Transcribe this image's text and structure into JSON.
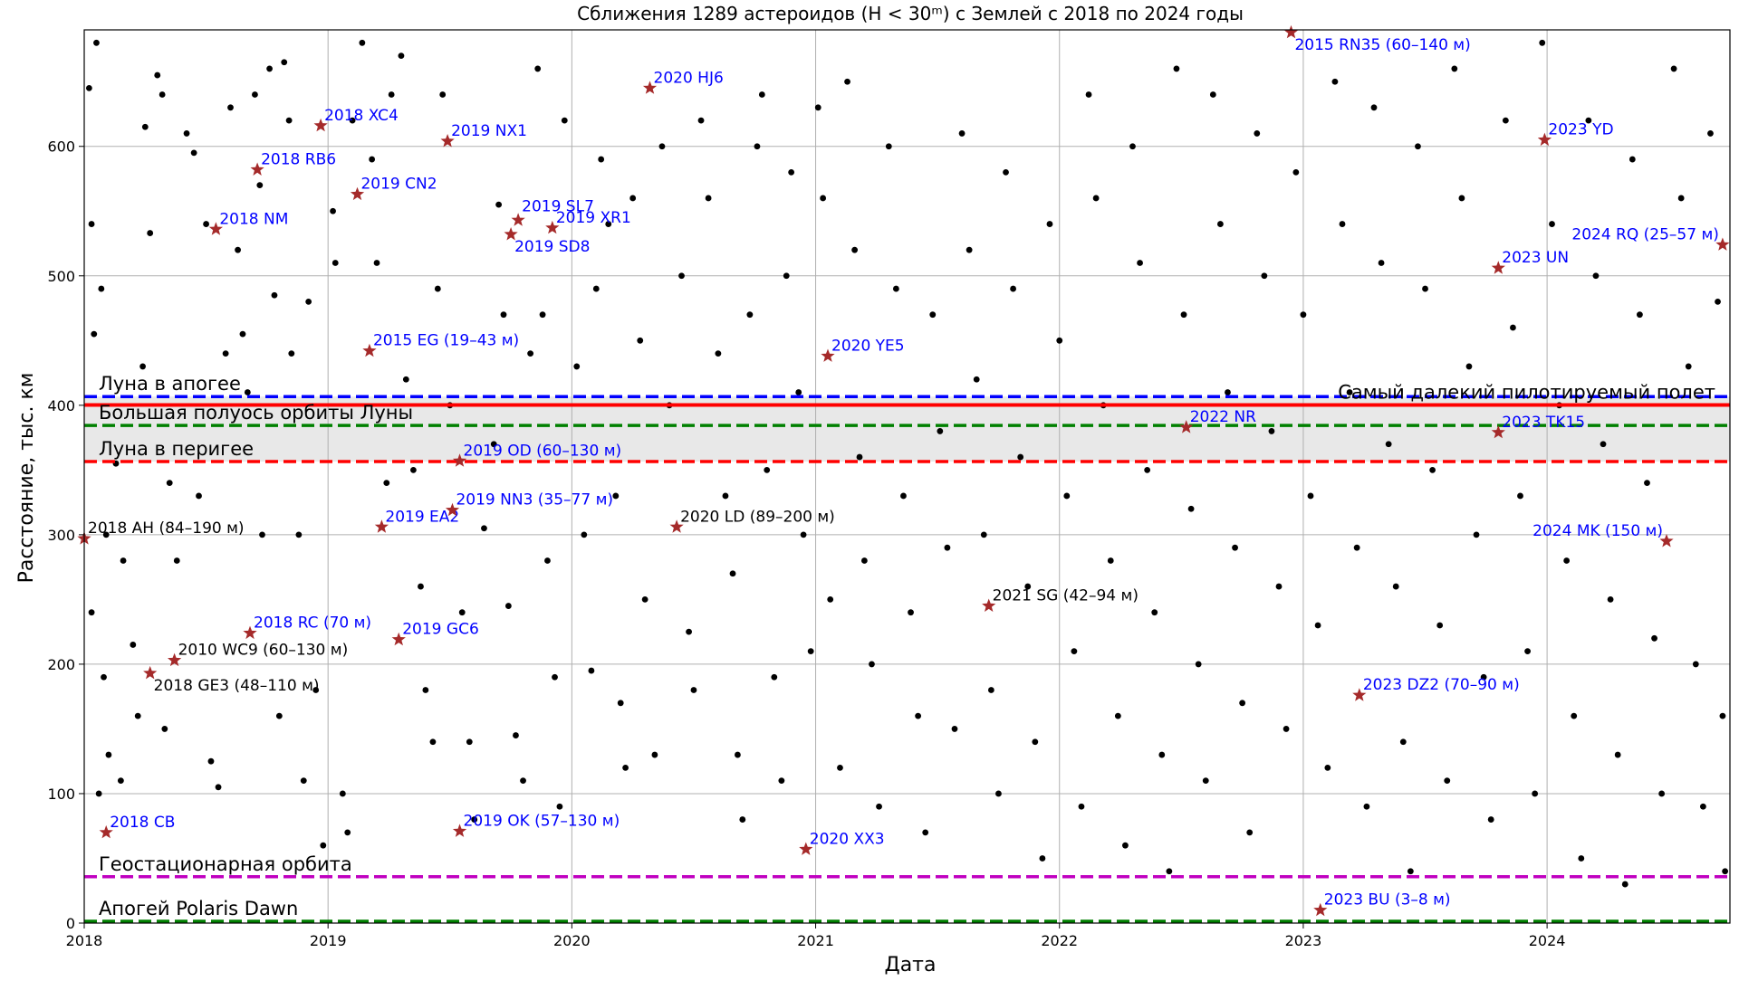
{
  "chart_data": {
    "type": "scatter",
    "title": "Сближения 1289 астероидов (H < 30ᵐ) с Землей с 2018 по 2024 годы",
    "xlabel": "Дата",
    "ylabel": "Расстояние, тыс. км",
    "xlim": [
      2018.0,
      2024.75
    ],
    "ylim": [
      0,
      690
    ],
    "x_ticks": [
      2018,
      2019,
      2020,
      2021,
      2022,
      2023,
      2024
    ],
    "y_ticks": [
      0,
      100,
      200,
      300,
      400,
      500,
      600
    ],
    "grid": true,
    "colors": {
      "points": "#000000",
      "star": "#a52a2a",
      "label_blue": "#0000ff",
      "label_black": "#000000",
      "moon_apogee": "#0000ff",
      "manned_record": "#ff0000",
      "semi_major_axis": "#008000",
      "moon_perigee": "#ff0000",
      "geo_orbit": "#c000c0",
      "polaris_dawn": "#008000",
      "moon_band": "#e8e8e8"
    },
    "reference_lines": [
      {
        "name": "Луна в апогее",
        "value": 406.7,
        "style": "dashed",
        "color": "#0000ff",
        "label_side": "left"
      },
      {
        "name": "Самый далекий пилотируемый полет",
        "value": 400.2,
        "style": "solid",
        "color": "#ff0000",
        "label_side": "right"
      },
      {
        "name": "Большая полуось орбиты Луны",
        "value": 384.4,
        "style": "dashed",
        "color": "#008000",
        "label_side": "left"
      },
      {
        "name": "Луна в перигее",
        "value": 356.5,
        "style": "dashed",
        "color": "#ff0000",
        "label_side": "left"
      },
      {
        "name": "Геостационарная орбита",
        "value": 35.8,
        "style": "dashed",
        "color": "#c000c0",
        "label_side": "left"
      },
      {
        "name": "Апогей Polaris Dawn",
        "value": 1.4,
        "style": "dashed",
        "color": "#008000",
        "label_side": "left"
      }
    ],
    "moon_band": [
      356.5,
      406.7
    ],
    "highlighted": [
      {
        "x": 2018.09,
        "y": 70,
        "label": "2018 CB",
        "color": "blue"
      },
      {
        "x": 2018.27,
        "y": 193,
        "label": "2018 GE3 (48–110 м)",
        "color": "black",
        "pos": "below"
      },
      {
        "x": 2018.37,
        "y": 203,
        "label": "2010 WC9 (60–130 м)",
        "color": "black"
      },
      {
        "x": 2018.0,
        "y": 297,
        "label": "2018 AH (84–190 м)",
        "color": "black"
      },
      {
        "x": 2018.54,
        "y": 536,
        "label": "2018 NM",
        "color": "blue"
      },
      {
        "x": 2018.68,
        "y": 224,
        "label": "2018 RC (70 м)",
        "color": "blue"
      },
      {
        "x": 2018.71,
        "y": 582,
        "label": "2018 RB6",
        "color": "blue"
      },
      {
        "x": 2018.97,
        "y": 616,
        "label": "2018 XC4",
        "color": "blue"
      },
      {
        "x": 2019.12,
        "y": 563,
        "label": "2019 CN2",
        "color": "blue"
      },
      {
        "x": 2019.17,
        "y": 442,
        "label": "2015 EG (19–43 м)",
        "color": "blue"
      },
      {
        "x": 2019.22,
        "y": 306,
        "label": "2019 EA2",
        "color": "blue"
      },
      {
        "x": 2019.29,
        "y": 219,
        "label": "2019 GC6",
        "color": "blue"
      },
      {
        "x": 2019.49,
        "y": 604,
        "label": "2019 NX1",
        "color": "blue"
      },
      {
        "x": 2019.51,
        "y": 319,
        "label": "2019 NN3 (35–77 м)",
        "color": "blue"
      },
      {
        "x": 2019.54,
        "y": 357,
        "label": "2019 OD (60–130 м)",
        "color": "blue"
      },
      {
        "x": 2019.54,
        "y": 71,
        "label": "2019 OK (57–130 м)",
        "color": "blue"
      },
      {
        "x": 2019.75,
        "y": 532,
        "label": "2019 SD8",
        "color": "blue",
        "pos": "below"
      },
      {
        "x": 2019.78,
        "y": 543,
        "label": "2019 SL7",
        "color": "blue",
        "pos": "above"
      },
      {
        "x": 2019.92,
        "y": 537,
        "label": "2019 XR1",
        "color": "blue"
      },
      {
        "x": 2020.32,
        "y": 645,
        "label": "2020 HJ6",
        "color": "blue"
      },
      {
        "x": 2020.43,
        "y": 306,
        "label": "2020 LD (89–200 м)",
        "color": "black"
      },
      {
        "x": 2020.96,
        "y": 57,
        "label": "2020 XX3",
        "color": "blue"
      },
      {
        "x": 2021.05,
        "y": 438,
        "label": "2020 YE5",
        "color": "blue"
      },
      {
        "x": 2021.71,
        "y": 245,
        "label": "2021 SG (42–94 м)",
        "color": "black"
      },
      {
        "x": 2022.52,
        "y": 383,
        "label": "2022 NR",
        "color": "blue"
      },
      {
        "x": 2022.95,
        "y": 688,
        "label": "2015 RN35 (60–140 м)",
        "color": "blue",
        "pos": "below"
      },
      {
        "x": 2023.07,
        "y": 10,
        "label": "2023 BU (3–8 м)",
        "color": "blue"
      },
      {
        "x": 2023.23,
        "y": 176,
        "label": "2023 DZ2 (70–90 м)",
        "color": "blue"
      },
      {
        "x": 2023.8,
        "y": 506,
        "label": "2023 UN",
        "color": "blue"
      },
      {
        "x": 2023.8,
        "y": 379,
        "label": "2023 TK15",
        "color": "blue"
      },
      {
        "x": 2023.99,
        "y": 605,
        "label": "2023 YD",
        "color": "blue"
      },
      {
        "x": 2024.49,
        "y": 295,
        "label": "2024 MK (150 м)",
        "color": "blue",
        "anchor": "end"
      },
      {
        "x": 2024.72,
        "y": 524,
        "label": "2024 RQ (25–57 м)",
        "color": "blue",
        "anchor": "end"
      }
    ],
    "points": [
      [
        2018.02,
        645
      ],
      [
        2018.05,
        680
      ],
      [
        2018.03,
        540
      ],
      [
        2018.07,
        490
      ],
      [
        2018.04,
        455
      ],
      [
        2018.09,
        300
      ],
      [
        2018.03,
        240
      ],
      [
        2018.08,
        190
      ],
      [
        2018.1,
        130
      ],
      [
        2018.06,
        100
      ],
      [
        2018.13,
        355
      ],
      [
        2018.16,
        280
      ],
      [
        2018.15,
        110
      ],
      [
        2018.2,
        215
      ],
      [
        2018.22,
        160
      ],
      [
        2018.25,
        615
      ],
      [
        2018.27,
        533
      ],
      [
        2018.3,
        655
      ],
      [
        2018.32,
        640
      ],
      [
        2018.24,
        430
      ],
      [
        2018.35,
        340
      ],
      [
        2018.38,
        280
      ],
      [
        2018.33,
        150
      ],
      [
        2018.42,
        610
      ],
      [
        2018.45,
        595
      ],
      [
        2018.47,
        330
      ],
      [
        2018.5,
        540
      ],
      [
        2018.52,
        125
      ],
      [
        2018.55,
        105
      ],
      [
        2018.58,
        440
      ],
      [
        2018.6,
        630
      ],
      [
        2018.63,
        520
      ],
      [
        2018.65,
        455
      ],
      [
        2018.67,
        410
      ],
      [
        2018.7,
        640
      ],
      [
        2018.72,
        570
      ],
      [
        2018.73,
        300
      ],
      [
        2018.76,
        660
      ],
      [
        2018.78,
        485
      ],
      [
        2018.8,
        160
      ],
      [
        2018.82,
        665
      ],
      [
        2018.84,
        620
      ],
      [
        2018.85,
        440
      ],
      [
        2018.88,
        300
      ],
      [
        2018.9,
        110
      ],
      [
        2018.92,
        480
      ],
      [
        2018.95,
        180
      ],
      [
        2018.98,
        60
      ],
      [
        2019.02,
        550
      ],
      [
        2019.03,
        510
      ],
      [
        2019.06,
        100
      ],
      [
        2019.08,
        70
      ],
      [
        2019.1,
        620
      ],
      [
        2019.14,
        680
      ],
      [
        2019.18,
        590
      ],
      [
        2019.2,
        510
      ],
      [
        2019.24,
        340
      ],
      [
        2019.26,
        640
      ],
      [
        2019.3,
        670
      ],
      [
        2019.32,
        420
      ],
      [
        2019.35,
        350
      ],
      [
        2019.38,
        260
      ],
      [
        2019.4,
        180
      ],
      [
        2019.43,
        140
      ],
      [
        2019.45,
        490
      ],
      [
        2019.47,
        640
      ],
      [
        2019.5,
        400
      ],
      [
        2019.55,
        240
      ],
      [
        2019.58,
        140
      ],
      [
        2019.6,
        80
      ],
      [
        2019.64,
        305
      ],
      [
        2019.68,
        370
      ],
      [
        2019.7,
        555
      ],
      [
        2019.72,
        470
      ],
      [
        2019.74,
        245
      ],
      [
        2019.77,
        145
      ],
      [
        2019.8,
        110
      ],
      [
        2019.83,
        440
      ],
      [
        2019.86,
        660
      ],
      [
        2019.88,
        470
      ],
      [
        2019.9,
        280
      ],
      [
        2019.93,
        190
      ],
      [
        2019.95,
        90
      ],
      [
        2019.97,
        620
      ],
      [
        2020.02,
        430
      ],
      [
        2020.05,
        300
      ],
      [
        2020.08,
        195
      ],
      [
        2020.1,
        490
      ],
      [
        2020.12,
        590
      ],
      [
        2020.15,
        540
      ],
      [
        2020.18,
        330
      ],
      [
        2020.2,
        170
      ],
      [
        2020.22,
        120
      ],
      [
        2020.25,
        560
      ],
      [
        2020.28,
        450
      ],
      [
        2020.3,
        250
      ],
      [
        2020.34,
        130
      ],
      [
        2020.37,
        600
      ],
      [
        2020.4,
        400
      ],
      [
        2020.45,
        500
      ],
      [
        2020.48,
        225
      ],
      [
        2020.5,
        180
      ],
      [
        2020.53,
        620
      ],
      [
        2020.56,
        560
      ],
      [
        2020.6,
        440
      ],
      [
        2020.63,
        330
      ],
      [
        2020.66,
        270
      ],
      [
        2020.68,
        130
      ],
      [
        2020.7,
        80
      ],
      [
        2020.73,
        470
      ],
      [
        2020.76,
        600
      ],
      [
        2020.78,
        640
      ],
      [
        2020.8,
        350
      ],
      [
        2020.83,
        190
      ],
      [
        2020.86,
        110
      ],
      [
        2020.88,
        500
      ],
      [
        2020.9,
        580
      ],
      [
        2020.93,
        410
      ],
      [
        2020.95,
        300
      ],
      [
        2020.98,
        210
      ],
      [
        2021.01,
        630
      ],
      [
        2021.03,
        560
      ],
      [
        2021.06,
        250
      ],
      [
        2021.1,
        120
      ],
      [
        2021.13,
        650
      ],
      [
        2021.16,
        520
      ],
      [
        2021.18,
        360
      ],
      [
        2021.2,
        280
      ],
      [
        2021.23,
        200
      ],
      [
        2021.26,
        90
      ],
      [
        2021.3,
        600
      ],
      [
        2021.33,
        490
      ],
      [
        2021.36,
        330
      ],
      [
        2021.39,
        240
      ],
      [
        2021.42,
        160
      ],
      [
        2021.45,
        70
      ],
      [
        2021.48,
        470
      ],
      [
        2021.51,
        380
      ],
      [
        2021.54,
        290
      ],
      [
        2021.57,
        150
      ],
      [
        2021.6,
        610
      ],
      [
        2021.63,
        520
      ],
      [
        2021.66,
        420
      ],
      [
        2021.69,
        300
      ],
      [
        2021.72,
        180
      ],
      [
        2021.75,
        100
      ],
      [
        2021.78,
        580
      ],
      [
        2021.81,
        490
      ],
      [
        2021.84,
        360
      ],
      [
        2021.87,
        260
      ],
      [
        2021.9,
        140
      ],
      [
        2021.93,
        50
      ],
      [
        2021.96,
        540
      ],
      [
        2022.0,
        450
      ],
      [
        2022.03,
        330
      ],
      [
        2022.06,
        210
      ],
      [
        2022.09,
        90
      ],
      [
        2022.12,
        640
      ],
      [
        2022.15,
        560
      ],
      [
        2022.18,
        400
      ],
      [
        2022.21,
        280
      ],
      [
        2022.24,
        160
      ],
      [
        2022.27,
        60
      ],
      [
        2022.3,
        600
      ],
      [
        2022.33,
        510
      ],
      [
        2022.36,
        350
      ],
      [
        2022.39,
        240
      ],
      [
        2022.42,
        130
      ],
      [
        2022.45,
        40
      ],
      [
        2022.48,
        660
      ],
      [
        2022.51,
        470
      ],
      [
        2022.54,
        320
      ],
      [
        2022.57,
        200
      ],
      [
        2022.6,
        110
      ],
      [
        2022.63,
        640
      ],
      [
        2022.66,
        540
      ],
      [
        2022.69,
        410
      ],
      [
        2022.72,
        290
      ],
      [
        2022.75,
        170
      ],
      [
        2022.78,
        70
      ],
      [
        2022.81,
        610
      ],
      [
        2022.84,
        500
      ],
      [
        2022.87,
        380
      ],
      [
        2022.9,
        260
      ],
      [
        2022.93,
        150
      ],
      [
        2022.97,
        580
      ],
      [
        2023.0,
        470
      ],
      [
        2023.03,
        330
      ],
      [
        2023.06,
        230
      ],
      [
        2023.1,
        120
      ],
      [
        2023.13,
        650
      ],
      [
        2023.16,
        540
      ],
      [
        2023.19,
        410
      ],
      [
        2023.22,
        290
      ],
      [
        2023.26,
        90
      ],
      [
        2023.29,
        630
      ],
      [
        2023.32,
        510
      ],
      [
        2023.35,
        370
      ],
      [
        2023.38,
        260
      ],
      [
        2023.41,
        140
      ],
      [
        2023.44,
        40
      ],
      [
        2023.47,
        600
      ],
      [
        2023.5,
        490
      ],
      [
        2023.53,
        350
      ],
      [
        2023.56,
        230
      ],
      [
        2023.59,
        110
      ],
      [
        2023.62,
        660
      ],
      [
        2023.65,
        560
      ],
      [
        2023.68,
        430
      ],
      [
        2023.71,
        300
      ],
      [
        2023.74,
        190
      ],
      [
        2023.77,
        80
      ],
      [
        2023.83,
        620
      ],
      [
        2023.86,
        460
      ],
      [
        2023.89,
        330
      ],
      [
        2023.92,
        210
      ],
      [
        2023.95,
        100
      ],
      [
        2023.98,
        680
      ],
      [
        2024.02,
        540
      ],
      [
        2024.05,
        400
      ],
      [
        2024.08,
        280
      ],
      [
        2024.11,
        160
      ],
      [
        2024.14,
        50
      ],
      [
        2024.17,
        620
      ],
      [
        2024.2,
        500
      ],
      [
        2024.23,
        370
      ],
      [
        2024.26,
        250
      ],
      [
        2024.29,
        130
      ],
      [
        2024.32,
        30
      ],
      [
        2024.35,
        590
      ],
      [
        2024.38,
        470
      ],
      [
        2024.41,
        340
      ],
      [
        2024.44,
        220
      ],
      [
        2024.47,
        100
      ],
      [
        2024.52,
        660
      ],
      [
        2024.55,
        560
      ],
      [
        2024.58,
        430
      ],
      [
        2024.61,
        200
      ],
      [
        2024.64,
        90
      ],
      [
        2024.67,
        610
      ],
      [
        2024.7,
        480
      ],
      [
        2024.72,
        160
      ],
      [
        2024.73,
        40
      ]
    ]
  }
}
